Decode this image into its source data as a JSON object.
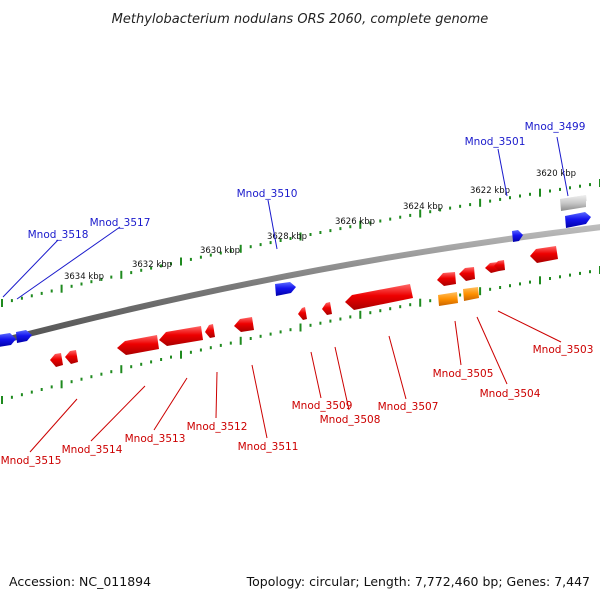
{
  "title": "Methylobacterium nodulans ORS 2060, complete genome",
  "footer": {
    "accession": "Accession: NC_011894",
    "topology": "Topology: circular; Length: 7,772,460 bp; Genes: 7,447"
  },
  "colors": {
    "backbone": "#777777",
    "tick": "#1f8a1f",
    "forward_gene": "#1010e0",
    "reverse_gene": "#e00000",
    "rna_gene": "#ff8c00",
    "pseudo_gene": "#c0c0c0",
    "forward_label": "#1a1acc",
    "reverse_label": "#cc0000"
  },
  "scale_labels": [
    "3620 kbp",
    "3622 kbp",
    "3624 kbp",
    "3626 kbp",
    "3628 kbp",
    "3630 kbp",
    "3632 kbp",
    "3634 kbp"
  ],
  "forward_labels": [
    "Mnod_3499",
    "Mnod_3501",
    "Mnod_3510",
    "Mnod_3517",
    "Mnod_3518"
  ],
  "reverse_labels": [
    "Mnod_3503",
    "Mnod_3504",
    "Mnod_3505",
    "Mnod_3507",
    "Mnod_3508",
    "Mnod_3509",
    "Mnod_3511",
    "Mnod_3512",
    "Mnod_3513",
    "Mnod_3514",
    "Mnod_3515"
  ]
}
